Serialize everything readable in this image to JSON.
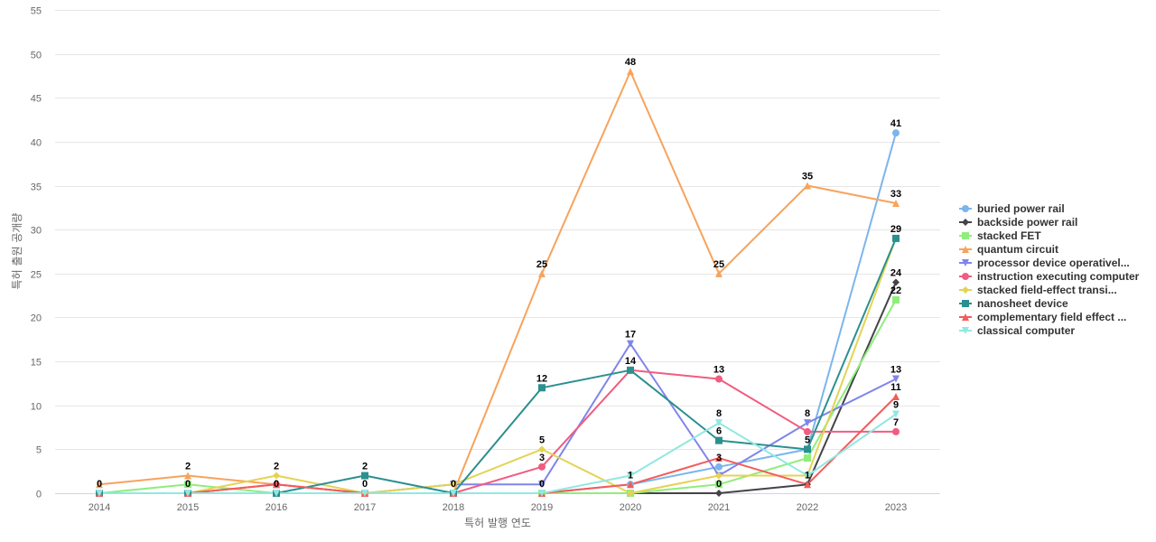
{
  "chart_data": {
    "type": "line",
    "title": "",
    "xlabel": "특허 발행 연도",
    "ylabel": "특허 출원 공개량",
    "ylim": [
      0,
      55
    ],
    "y_ticks": [
      0,
      5,
      10,
      15,
      20,
      25,
      30,
      35,
      40,
      45,
      50,
      55
    ],
    "grid": true,
    "legend_position": "right",
    "x": [
      "2014",
      "2015",
      "2016",
      "2017",
      "2018",
      "2019",
      "2020",
      "2021",
      "2022",
      "2023"
    ],
    "series": [
      {
        "name": "buried power rail",
        "color": "#7cb5ec",
        "marker": "circle",
        "values": [
          0,
          0,
          0,
          0,
          0,
          0,
          1,
          3,
          5,
          41
        ]
      },
      {
        "name": "backside power rail",
        "color": "#434348",
        "marker": "diamond",
        "values": [
          0,
          0,
          0,
          0,
          0,
          0,
          0,
          0,
          1,
          24
        ]
      },
      {
        "name": "stacked FET",
        "color": "#90ed7d",
        "marker": "square",
        "values": [
          0,
          1,
          0,
          0,
          0,
          0,
          0,
          1,
          4,
          22
        ]
      },
      {
        "name": "quantum circuit",
        "color": "#f7a35c",
        "marker": "triangle",
        "values": [
          1,
          2,
          1,
          0,
          0,
          25,
          48,
          25,
          35,
          33
        ]
      },
      {
        "name": "processor device operativel...",
        "color": "#8085e9",
        "marker": "triangle-down",
        "values": [
          0,
          0,
          0,
          0,
          1,
          1,
          17,
          2,
          8,
          13
        ]
      },
      {
        "name": "instruction executing computer",
        "color": "#f15c80",
        "marker": "circle",
        "values": [
          0,
          0,
          1,
          0,
          0,
          3,
          14,
          13,
          7,
          7
        ]
      },
      {
        "name": "stacked field-effect transi...",
        "color": "#e4d354",
        "marker": "diamond",
        "values": [
          0,
          0,
          2,
          0,
          1,
          5,
          0,
          2,
          2,
          29
        ]
      },
      {
        "name": "nanosheet device",
        "color": "#2b908f",
        "marker": "square",
        "values": [
          0,
          0,
          0,
          2,
          0,
          12,
          14,
          6,
          5,
          29
        ]
      },
      {
        "name": "complementary field effect ...",
        "color": "#f45b5b",
        "marker": "triangle",
        "values": [
          0,
          0,
          1,
          0,
          0,
          0,
          1,
          4,
          1,
          11
        ]
      },
      {
        "name": "classical computer",
        "color": "#91e8e1",
        "marker": "triangle-down",
        "values": [
          0,
          0,
          0,
          0,
          0,
          0,
          2,
          8,
          2,
          9
        ]
      }
    ],
    "data_labels": [
      {
        "x": "2014",
        "text": "0",
        "y": 0
      },
      {
        "x": "2015",
        "text": "2",
        "y": 2
      },
      {
        "x": "2015",
        "text": "0",
        "y": 0
      },
      {
        "x": "2016",
        "text": "2",
        "y": 2
      },
      {
        "x": "2016",
        "text": "0",
        "y": 0
      },
      {
        "x": "2017",
        "text": "2",
        "y": 2
      },
      {
        "x": "2017",
        "text": "0",
        "y": 0
      },
      {
        "x": "2018",
        "text": "0",
        "y": 0
      },
      {
        "x": "2019",
        "text": "25",
        "y": 25
      },
      {
        "x": "2019",
        "text": "12",
        "y": 12
      },
      {
        "x": "2019",
        "text": "5",
        "y": 5
      },
      {
        "x": "2019",
        "text": "3",
        "y": 3
      },
      {
        "x": "2019",
        "text": "0",
        "y": 0
      },
      {
        "x": "2020",
        "text": "48",
        "y": 48
      },
      {
        "x": "2020",
        "text": "17",
        "y": 17
      },
      {
        "x": "2020",
        "text": "14",
        "y": 14
      },
      {
        "x": "2020",
        "text": "1",
        "y": 1
      },
      {
        "x": "2021",
        "text": "25",
        "y": 25
      },
      {
        "x": "2021",
        "text": "13",
        "y": 13
      },
      {
        "x": "2021",
        "text": "8",
        "y": 8
      },
      {
        "x": "2021",
        "text": "6",
        "y": 6
      },
      {
        "x": "2021",
        "text": "3",
        "y": 3
      },
      {
        "x": "2021",
        "text": "0",
        "y": 0
      },
      {
        "x": "2022",
        "text": "35",
        "y": 35
      },
      {
        "x": "2022",
        "text": "8",
        "y": 8
      },
      {
        "x": "2022",
        "text": "5",
        "y": 5
      },
      {
        "x": "2022",
        "text": "1",
        "y": 1
      },
      {
        "x": "2023",
        "text": "41",
        "y": 41
      },
      {
        "x": "2023",
        "text": "33",
        "y": 33
      },
      {
        "x": "2023",
        "text": "29",
        "y": 29
      },
      {
        "x": "2023",
        "text": "24",
        "y": 24
      },
      {
        "x": "2023",
        "text": "22",
        "y": 22
      },
      {
        "x": "2023",
        "text": "13",
        "y": 13
      },
      {
        "x": "2023",
        "text": "11",
        "y": 11
      },
      {
        "x": "2023",
        "text": "9",
        "y": 9
      },
      {
        "x": "2023",
        "text": "7",
        "y": 7
      }
    ]
  }
}
